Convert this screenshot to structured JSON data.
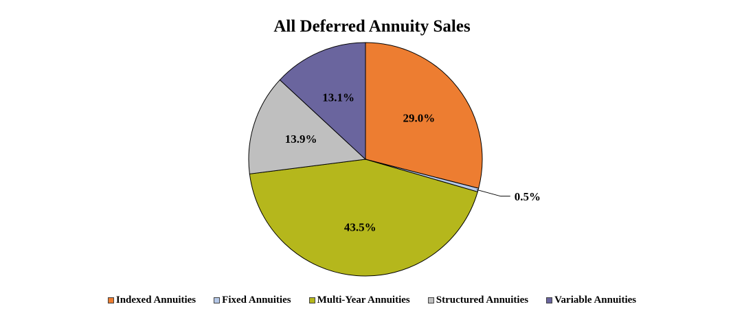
{
  "chart_data": {
    "type": "pie",
    "title": "All Deferred Annuity Sales",
    "legend_position": "bottom",
    "slices": [
      {
        "name": "Indexed Annuities",
        "value": 29.0,
        "label": "29.0%",
        "color": "#ED7D31"
      },
      {
        "name": "Fixed Annuities",
        "value": 0.5,
        "label": "0.5%",
        "color": "#B4C7E7"
      },
      {
        "name": "Multi-Year Annuities",
        "value": 43.5,
        "label": "43.5%",
        "color": "#B5B71C"
      },
      {
        "name": "Structured Annuities",
        "value": 13.9,
        "label": "13.9%",
        "color": "#BFBFBF"
      },
      {
        "name": "Variable Annuities",
        "value": 13.1,
        "label": "13.1%",
        "color": "#6A659E"
      }
    ]
  }
}
